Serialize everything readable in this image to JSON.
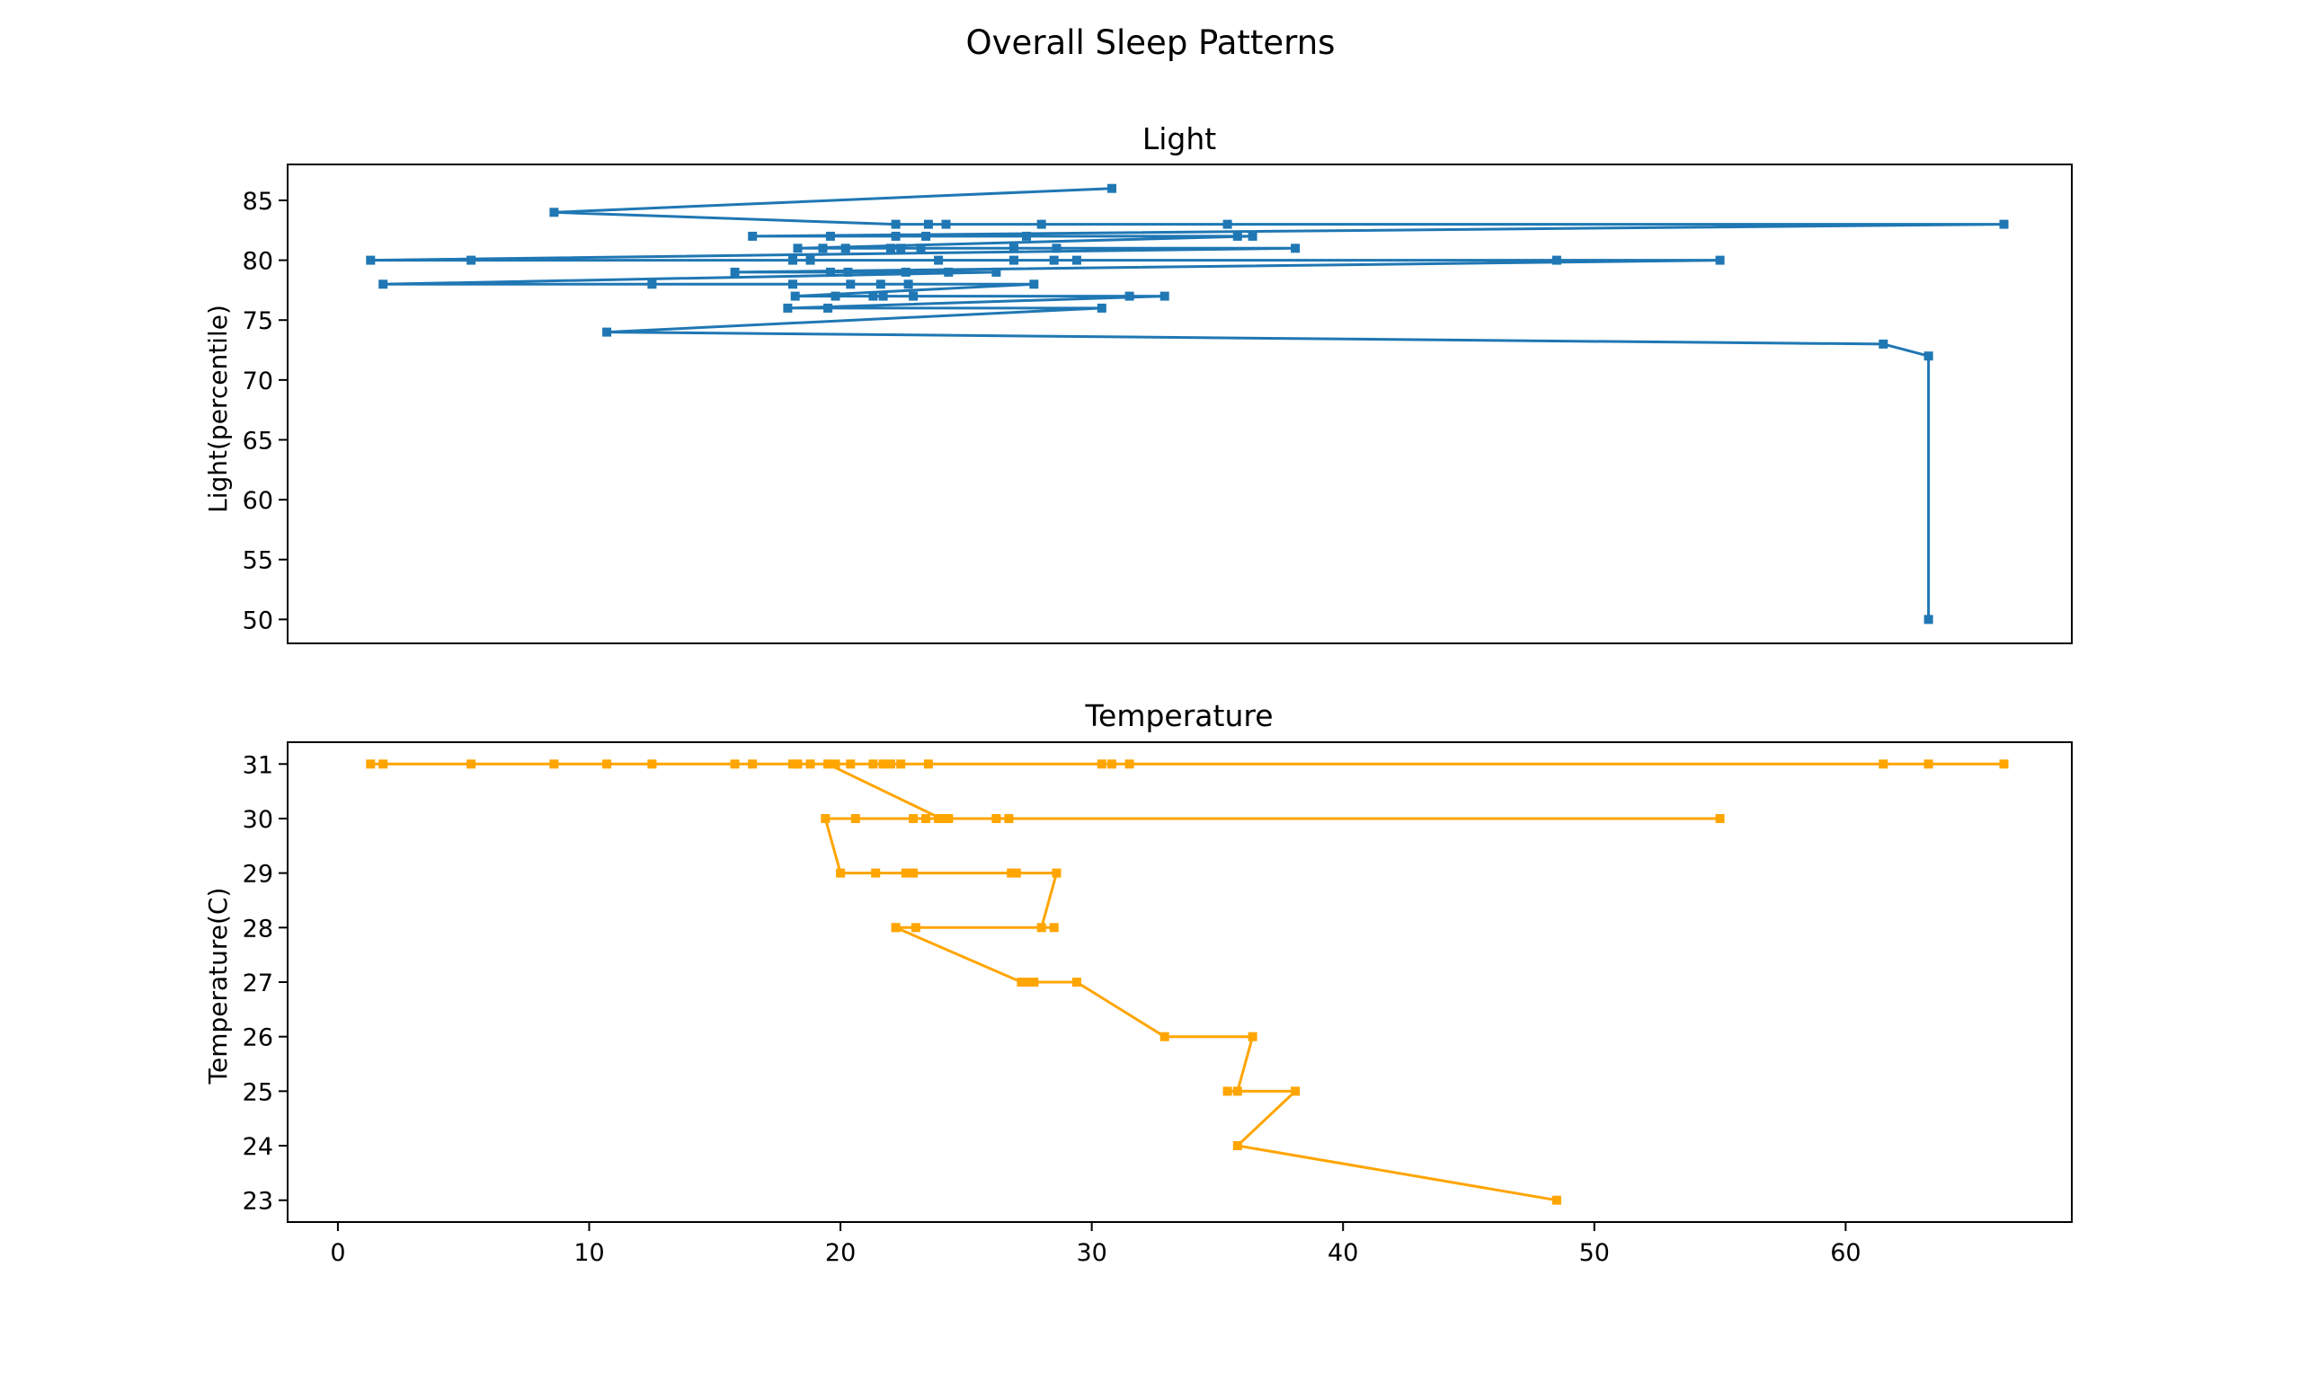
{
  "chart_data": [
    {
      "type": "line",
      "figure_title": "Overall Sleep Patterns",
      "title": "Light",
      "xlabel": "",
      "ylabel": "Light(percentile)",
      "xlim": [
        -2,
        69
      ],
      "ylim": [
        48,
        88
      ],
      "xticks_visible": false,
      "yticks": [
        50,
        55,
        60,
        65,
        70,
        75,
        80,
        85
      ],
      "grid": false,
      "color": "#1f77b4",
      "marker": "square",
      "series": [
        {
          "x": [
            30.8,
            8.6,
            22.2,
            23.5,
            24.2,
            28.0,
            35.4,
            66.3,
            16.5,
            19.6,
            22.2,
            23.4,
            27.4,
            35.8,
            36.4,
            18.3,
            19.3,
            20.2,
            22.0,
            22.4,
            23.2,
            26.9,
            28.6,
            38.1,
            1.3,
            5.3,
            18.1,
            18.8,
            23.9,
            26.9,
            28.5,
            29.4,
            48.5,
            55.0,
            15.8,
            19.6,
            20.3,
            22.6,
            24.3,
            26.2,
            1.8,
            12.5,
            18.1,
            20.4,
            21.6,
            22.7,
            27.7,
            18.2,
            19.8,
            21.3,
            21.7,
            22.9,
            31.5,
            32.9,
            17.9,
            19.5,
            30.4,
            10.7,
            61.5,
            63.3,
            63.3
          ],
          "y": [
            86,
            84,
            83,
            83,
            83,
            83,
            83,
            83,
            82,
            82,
            82,
            82,
            82,
            82,
            82,
            81,
            81,
            81,
            81,
            81,
            81,
            81,
            81,
            81,
            80,
            80,
            80,
            80,
            80,
            80,
            80,
            80,
            80,
            80,
            79,
            79,
            79,
            79,
            79,
            79,
            78,
            78,
            78,
            78,
            78,
            78,
            78,
            77,
            77,
            77,
            77,
            77,
            77,
            77,
            76,
            76,
            76,
            74,
            73,
            72,
            50
          ]
        }
      ]
    },
    {
      "type": "line",
      "title": "Temperature",
      "xlabel": "",
      "ylabel": "Temperature(C)",
      "xlim": [
        -2,
        69
      ],
      "ylim": [
        22.6,
        31.4
      ],
      "xticks": [
        0,
        10,
        20,
        30,
        40,
        50,
        60
      ],
      "yticks": [
        23,
        24,
        25,
        26,
        27,
        28,
        29,
        30,
        31
      ],
      "grid": false,
      "color": "#ffa500",
      "marker": "square",
      "series": [
        {
          "x": [
            66.3,
            63.3,
            61.5,
            31.5,
            30.8,
            30.4,
            23.5,
            22.4,
            22.0,
            21.7,
            21.3,
            20.4,
            19.8,
            18.8,
            18.3,
            18.1,
            16.5,
            15.8,
            12.5,
            10.7,
            8.6,
            5.3,
            1.8,
            1.3,
            19.5,
            24.0,
            55.0,
            26.7,
            26.2,
            24.3,
            23.9,
            23.4,
            22.9,
            20.6,
            19.4,
            20.0,
            21.4,
            22.6,
            22.9,
            27.0,
            26.8,
            28.6,
            28.0,
            28.5,
            22.2,
            23.0,
            22.2,
            27.2,
            27.5,
            27.7,
            29.4,
            32.9,
            36.4,
            35.8,
            35.4,
            38.1,
            35.8,
            48.5
          ],
          "y": [
            31,
            31,
            31,
            31,
            31,
            31,
            31,
            31,
            31,
            31,
            31,
            31,
            31,
            31,
            31,
            31,
            31,
            31,
            31,
            31,
            31,
            31,
            31,
            31,
            31,
            30,
            30,
            30,
            30,
            30,
            30,
            30,
            30,
            30,
            30,
            29,
            29,
            29,
            29,
            29,
            29,
            29,
            28,
            28,
            28,
            28,
            28,
            27,
            27,
            27,
            27,
            26,
            26,
            25,
            25,
            25,
            24,
            23
          ]
        }
      ]
    }
  ]
}
